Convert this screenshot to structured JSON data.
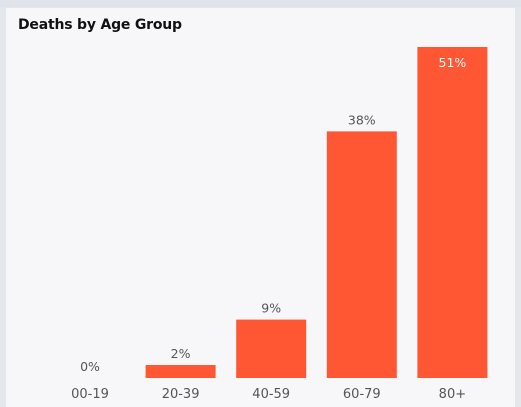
{
  "chart_data": {
    "type": "bar",
    "title": "Deaths by Age Group",
    "categories": [
      "00-19",
      "20-39",
      "40-59",
      "60-79",
      "80+"
    ],
    "values": [
      0,
      2,
      9,
      38,
      51
    ],
    "value_labels": [
      "0%",
      "2%",
      "9%",
      "38%",
      "51%"
    ],
    "unit": "%",
    "ylim": [
      0,
      51
    ],
    "grid": false,
    "legend": "none",
    "bar_color": "#ff5733",
    "label_color_outside": "#555555",
    "label_color_inside": "#ffffff"
  }
}
